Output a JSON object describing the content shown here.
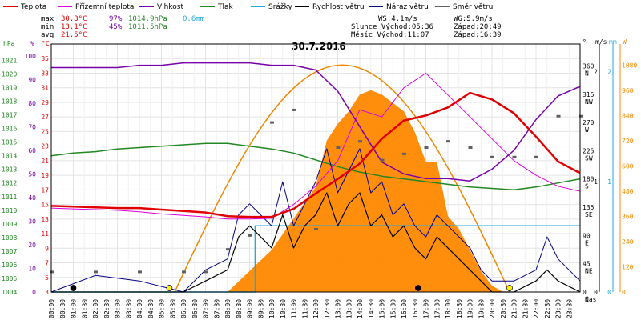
{
  "colors": {
    "teplota": "#e00000",
    "pocitova": "#dd00dd",
    "vlhkost": "#7700aa",
    "tlak": "#228822",
    "srazky": "#22aadd",
    "rychlost": "#000000",
    "naraz": "#000080",
    "smer": "#606060",
    "sun": "#ff8800",
    "sunline": "#ee8800"
  },
  "legend": [
    {
      "label": "Teplota",
      "color": "#e00000"
    },
    {
      "label": "Přízemní teplota",
      "color": "#dd00dd"
    },
    {
      "label": "Vlhkost",
      "color": "#7700aa"
    },
    {
      "label": "Tlak",
      "color": "#228822"
    },
    {
      "label": "Srážky",
      "color": "#22aadd"
    },
    {
      "label": "Rychlost větru",
      "color": "#000000"
    },
    {
      "label": "Náraz větru",
      "color": "#000080"
    },
    {
      "label": "Směr větru",
      "color": "#606060"
    }
  ],
  "stats": {
    "max_label": "max",
    "max_temp": "30.3°C",
    "max_hum": "97%",
    "max_press": "1014.9hPa",
    "max_rain": "0.6mm",
    "min_label": "min",
    "min_temp": "13.1°C",
    "min_hum": "45%",
    "min_press": "1011.5hPa",
    "avg_label": "avg",
    "avg_temp": "21.5°C",
    "ws": "WS:4.1m/s",
    "wg": "WG:5.9m/s",
    "sun": "Slunce Východ:05:36",
    "sun_set": "Západ:20:49",
    "moon": "Měsíc  Východ:11:07",
    "moon_set": "Západ:16:39"
  },
  "chart_data": {
    "type": "line",
    "title": "30.7.2016",
    "xlabel": "čas",
    "x_ticks": [
      "00:00",
      "00:30",
      "01:00",
      "01:30",
      "02:00",
      "02:30",
      "03:00",
      "03:30",
      "04:00",
      "04:30",
      "05:00",
      "05:30",
      "06:00",
      "06:30",
      "07:00",
      "07:30",
      "08:00",
      "08:30",
      "09:00",
      "09:30",
      "10:00",
      "10:30",
      "11:00",
      "11:30",
      "12:00",
      "12:30",
      "13:00",
      "13:30",
      "14:00",
      "14:30",
      "15:00",
      "15:30",
      "16:00",
      "16:30",
      "17:00",
      "17:30",
      "18:00",
      "18:30",
      "19:00",
      "19:30",
      "20:00",
      "20:30",
      "21:00",
      "21:30",
      "22:00",
      "22:30",
      "23:00",
      "23:30"
    ],
    "axes": {
      "pressure": {
        "label": "hPa",
        "ticks": [
          1004,
          1005,
          1006,
          1007,
          1008,
          1009,
          1010,
          1011,
          1012,
          1013,
          1014,
          1015,
          1016,
          1017,
          1018,
          1019,
          1020,
          1021
        ]
      },
      "humidity": {
        "label": "%",
        "ticks": [
          0,
          10,
          20,
          30,
          40,
          50,
          60,
          70,
          80,
          90,
          100
        ]
      },
      "temperature": {
        "label": "°C",
        "ticks": [
          3,
          5,
          7,
          9,
          11,
          13,
          15,
          17,
          19,
          21,
          23,
          25,
          27,
          29,
          31,
          33,
          35
        ]
      },
      "direction": {
        "label": "°",
        "ticks": [
          {
            "v": 0,
            "t": "0"
          },
          {
            "v": 45,
            "t": "45"
          },
          {
            "v": 90,
            "t": "90"
          },
          {
            "v": 135,
            "t": "135"
          },
          {
            "v": 180,
            "t": "180"
          },
          {
            "v": 225,
            "t": "225"
          },
          {
            "v": 270,
            "t": "270"
          },
          {
            "v": 315,
            "t": "315"
          },
          {
            "v": 360,
            "t": "360"
          }
        ],
        "names": [
          "N",
          "NE",
          "E",
          "SE",
          "S",
          "SW",
          "W",
          "NW",
          "N"
        ]
      },
      "wind": {
        "label": "m/s",
        "ticks": [
          {
            "v": 0,
            "t": "0"
          },
          {
            "v": 1,
            "t": "1"
          },
          {
            "v": 2,
            "t": "2"
          }
        ]
      },
      "rain": {
        "label": "mm",
        "ticks": [
          {
            "v": 0,
            "t": "0"
          },
          {
            "v": 1,
            "t": "1"
          },
          {
            "v": 2,
            "t": "2"
          }
        ]
      },
      "solar": {
        "label": "W",
        "ticks": [
          0,
          120,
          240,
          360,
          480,
          600,
          720,
          840,
          960,
          1080
        ]
      }
    },
    "series": [
      {
        "name": "Teplota",
        "axis": "temperature",
        "x": [
          0,
          1,
          2,
          3,
          4,
          5,
          6,
          7,
          8,
          9,
          10,
          11,
          12,
          13,
          14,
          15,
          16,
          17,
          18,
          19,
          20,
          21,
          22,
          23,
          24
        ],
        "y": [
          14.8,
          14.7,
          14.6,
          14.5,
          14.5,
          14.3,
          14.1,
          13.9,
          13.4,
          13.3,
          13.3,
          14.4,
          16.5,
          18.5,
          20.6,
          24.0,
          26.5,
          27.2,
          28.3,
          30.3,
          29.4,
          27.5,
          24.3,
          20.9,
          19.3
        ]
      },
      {
        "name": "Přízemní teplota",
        "axis": "temperature",
        "x": [
          0,
          1,
          2,
          3,
          4,
          5,
          6,
          7,
          8,
          9,
          10,
          11,
          12,
          13,
          14,
          15,
          16,
          17,
          18,
          19,
          20,
          21,
          22,
          23,
          24
        ],
        "y": [
          14.5,
          14.4,
          14.3,
          14.2,
          14.0,
          13.7,
          13.5,
          13.3,
          13.0,
          13.0,
          13.1,
          15.0,
          17.5,
          21.0,
          28.0,
          27.0,
          31.0,
          33.0,
          30.0,
          27.0,
          24.0,
          21.0,
          19.0,
          17.5,
          16.8
        ]
      },
      {
        "name": "Vlhkost",
        "axis": "humidity",
        "x": [
          0,
          1,
          2,
          3,
          4,
          5,
          6,
          7,
          8,
          9,
          10,
          11,
          12,
          13,
          14,
          15,
          16,
          17,
          18,
          19,
          20,
          21,
          22,
          23,
          24
        ],
        "y": [
          95,
          95,
          95,
          95,
          96,
          96,
          97,
          97,
          97,
          97,
          96,
          96,
          94,
          85,
          70,
          55,
          50,
          48,
          48,
          47,
          52,
          60,
          73,
          83,
          87
        ]
      },
      {
        "name": "Tlak",
        "axis": "pressure",
        "x": [
          0,
          1,
          2,
          3,
          4,
          5,
          6,
          7,
          8,
          9,
          10,
          11,
          12,
          13,
          14,
          15,
          16,
          17,
          18,
          19,
          20,
          21,
          22,
          23,
          24
        ],
        "y": [
          1014.0,
          1014.2,
          1014.3,
          1014.5,
          1014.6,
          1014.7,
          1014.8,
          1014.9,
          1014.9,
          1014.7,
          1014.5,
          1014.2,
          1013.7,
          1013.2,
          1012.8,
          1012.5,
          1012.3,
          1012.1,
          1011.9,
          1011.7,
          1011.6,
          1011.5,
          1011.7,
          1012.0,
          1012.3
        ]
      },
      {
        "name": "Srážky",
        "axis": "rain",
        "x": [
          0,
          9.25,
          9.25,
          24
        ],
        "y": [
          0,
          0,
          0.6,
          0.6
        ]
      },
      {
        "name": "Rychlost větru",
        "axis": "wind",
        "x": [
          0,
          2,
          4,
          6,
          7,
          8,
          8.5,
          9,
          9.5,
          10,
          10.5,
          11,
          11.5,
          12,
          12.5,
          13,
          13.5,
          14,
          14.5,
          15,
          15.5,
          16,
          16.5,
          17,
          17.5,
          18,
          18.5,
          19,
          19.5,
          20,
          21,
          22,
          22.5,
          23,
          24
        ],
        "y": [
          0,
          0,
          0,
          0,
          0.1,
          0.2,
          0.5,
          0.6,
          0.5,
          0.4,
          0.7,
          0.4,
          0.6,
          0.7,
          0.9,
          0.6,
          0.8,
          0.9,
          0.6,
          0.7,
          0.5,
          0.6,
          0.4,
          0.3,
          0.5,
          0.4,
          0.3,
          0.2,
          0.1,
          0,
          0,
          0.1,
          0.2,
          0.1,
          0
        ]
      },
      {
        "name": "Náraz větru",
        "axis": "wind",
        "x": [
          0,
          2,
          4,
          6,
          7,
          8,
          8.5,
          9,
          9.5,
          10,
          10.5,
          11,
          11.5,
          12,
          12.5,
          13,
          13.5,
          14,
          14.5,
          15,
          15.5,
          16,
          16.5,
          17,
          17.5,
          18,
          18.5,
          19,
          19.5,
          20,
          21,
          22,
          22.5,
          23,
          24
        ],
        "y": [
          0,
          0.15,
          0.1,
          0,
          0.2,
          0.3,
          0.7,
          0.8,
          0.7,
          0.6,
          1.0,
          0.6,
          0.8,
          1.0,
          1.3,
          0.9,
          1.1,
          1.3,
          0.9,
          1.0,
          0.7,
          0.8,
          0.6,
          0.5,
          0.7,
          0.6,
          0.5,
          0.4,
          0.2,
          0.1,
          0.1,
          0.2,
          0.5,
          0.3,
          0.1
        ]
      },
      {
        "name": "Směr větru",
        "axis": "direction",
        "x": [
          0,
          2,
          4,
          6,
          7,
          8,
          9,
          10,
          11,
          12,
          13,
          14,
          15,
          16,
          17,
          18,
          19,
          20,
          21,
          22,
          23,
          24
        ],
        "y": [
          32,
          32,
          32,
          32,
          32,
          68,
          90,
          270,
          290,
          100,
          230,
          240,
          210,
          220,
          230,
          240,
          230,
          215,
          215,
          215,
          280,
          280
        ]
      },
      {
        "name": "Solar",
        "axis": "solar",
        "x": [
          0,
          5.5,
          6,
          7,
          8,
          9,
          10,
          11,
          12,
          12.5,
          13,
          13.5,
          14,
          14.5,
          15,
          15.5,
          16,
          16.5,
          17,
          17.5,
          18,
          18.5,
          19,
          19.5,
          20,
          20.5,
          21,
          24
        ],
        "y": [
          0,
          0,
          0,
          0,
          0,
          100,
          200,
          350,
          500,
          720,
          800,
          860,
          940,
          960,
          940,
          900,
          860,
          760,
          620,
          620,
          360,
          300,
          200,
          100,
          30,
          0,
          0,
          0
        ]
      }
    ],
    "sun_curve": {
      "name": "Solar theoretical",
      "axis": "solar",
      "rise": 5.6,
      "set": 20.8,
      "peak": 1080
    },
    "grid": true
  }
}
